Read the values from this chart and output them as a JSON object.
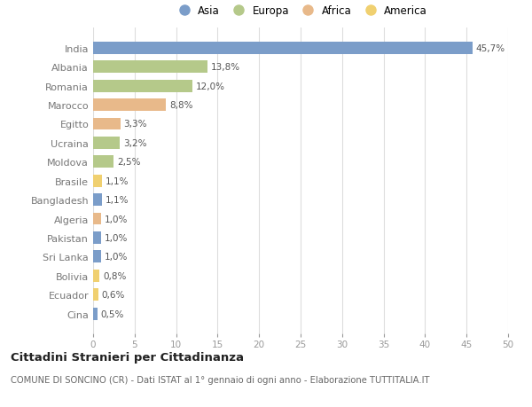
{
  "countries": [
    "India",
    "Albania",
    "Romania",
    "Marocco",
    "Egitto",
    "Ucraina",
    "Moldova",
    "Brasile",
    "Bangladesh",
    "Algeria",
    "Pakistan",
    "Sri Lanka",
    "Bolivia",
    "Ecuador",
    "Cina"
  ],
  "values": [
    45.7,
    13.8,
    12.0,
    8.8,
    3.3,
    3.2,
    2.5,
    1.1,
    1.1,
    1.0,
    1.0,
    1.0,
    0.8,
    0.6,
    0.5
  ],
  "labels": [
    "45,7%",
    "13,8%",
    "12,0%",
    "8,8%",
    "3,3%",
    "3,2%",
    "2,5%",
    "1,1%",
    "1,1%",
    "1,0%",
    "1,0%",
    "1,0%",
    "0,8%",
    "0,6%",
    "0,5%"
  ],
  "continents": [
    "Asia",
    "Europa",
    "Europa",
    "Africa",
    "Africa",
    "Europa",
    "Europa",
    "America",
    "Asia",
    "Africa",
    "Asia",
    "Asia",
    "America",
    "America",
    "Asia"
  ],
  "continent_colors": {
    "Asia": "#7b9dc9",
    "Europa": "#b5c98a",
    "Africa": "#e8b98a",
    "America": "#f0d070"
  },
  "background_color": "#ffffff",
  "plot_bg_color": "#ffffff",
  "title": "Cittadini Stranieri per Cittadinanza",
  "subtitle": "COMUNE DI SONCINO (CR) - Dati ISTAT al 1° gennaio di ogni anno - Elaborazione TUTTITALIA.IT",
  "xlim": [
    0,
    50
  ],
  "xticks": [
    0,
    5,
    10,
    15,
    20,
    25,
    30,
    35,
    40,
    45,
    50
  ],
  "legend_order": [
    "Asia",
    "Europa",
    "Africa",
    "America"
  ]
}
